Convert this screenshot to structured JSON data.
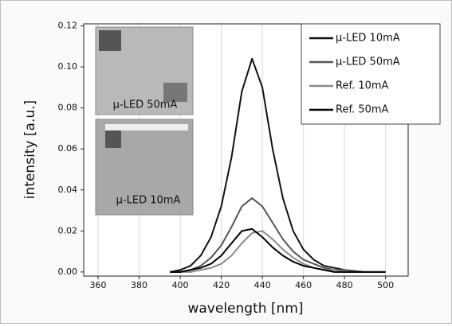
{
  "chart_data": {
    "type": "line",
    "xlabel": "wavelength [nm]",
    "ylabel": "intensity [a.u.]",
    "x": [
      395,
      400,
      405,
      410,
      415,
      420,
      425,
      430,
      435,
      440,
      445,
      450,
      455,
      460,
      465,
      470,
      475,
      480,
      490,
      500
    ],
    "series": [
      {
        "name": "μ-LED 10mA",
        "color": "#111111",
        "values": [
          0,
          0.001,
          0.003,
          0.008,
          0.017,
          0.032,
          0.056,
          0.088,
          0.104,
          0.09,
          0.06,
          0.036,
          0.02,
          0.011,
          0.006,
          0.003,
          0.002,
          0.001,
          0,
          0
        ]
      },
      {
        "name": "μ-LED 50mA",
        "color": "#555555",
        "values": [
          0,
          0,
          0.001,
          0.003,
          0.007,
          0.013,
          0.022,
          0.032,
          0.036,
          0.032,
          0.024,
          0.016,
          0.01,
          0.006,
          0.004,
          0.002,
          0.001,
          0.001,
          0,
          0
        ]
      },
      {
        "name": "Ref. 10mA",
        "color": "#8a8a8a",
        "values": [
          0,
          0,
          0,
          0.001,
          0.002,
          0.004,
          0.008,
          0.014,
          0.019,
          0.02,
          0.016,
          0.011,
          0.007,
          0.004,
          0.002,
          0.001,
          0.001,
          0,
          0,
          0
        ]
      },
      {
        "name": "Ref. 50mA",
        "color": "#000000",
        "values": [
          0,
          0,
          0.001,
          0.002,
          0.004,
          0.008,
          0.014,
          0.02,
          0.021,
          0.017,
          0.012,
          0.008,
          0.005,
          0.003,
          0.002,
          0.001,
          0,
          0,
          0,
          0
        ]
      }
    ],
    "xlim": [
      353,
      511
    ],
    "ylim": [
      -0.002,
      0.121
    ],
    "xticks": [
      360,
      380,
      400,
      420,
      440,
      460,
      480,
      500
    ],
    "yticks": [
      {
        "value": 0,
        "label": "0.00"
      },
      {
        "value": 0.02,
        "label": "0.02"
      },
      {
        "value": 0.04,
        "label": "0.04"
      },
      {
        "value": 0.06,
        "label": "0.06"
      },
      {
        "value": 0.08,
        "label": "0.08"
      },
      {
        "value": 0.1,
        "label": "0.10"
      },
      {
        "value": 0.12,
        "label": "0.12"
      }
    ],
    "grid": true,
    "legend": "upper right",
    "insets": [
      {
        "label": "μ-LED 50mA"
      },
      {
        "label": "μ-LED 10mA"
      }
    ]
  }
}
